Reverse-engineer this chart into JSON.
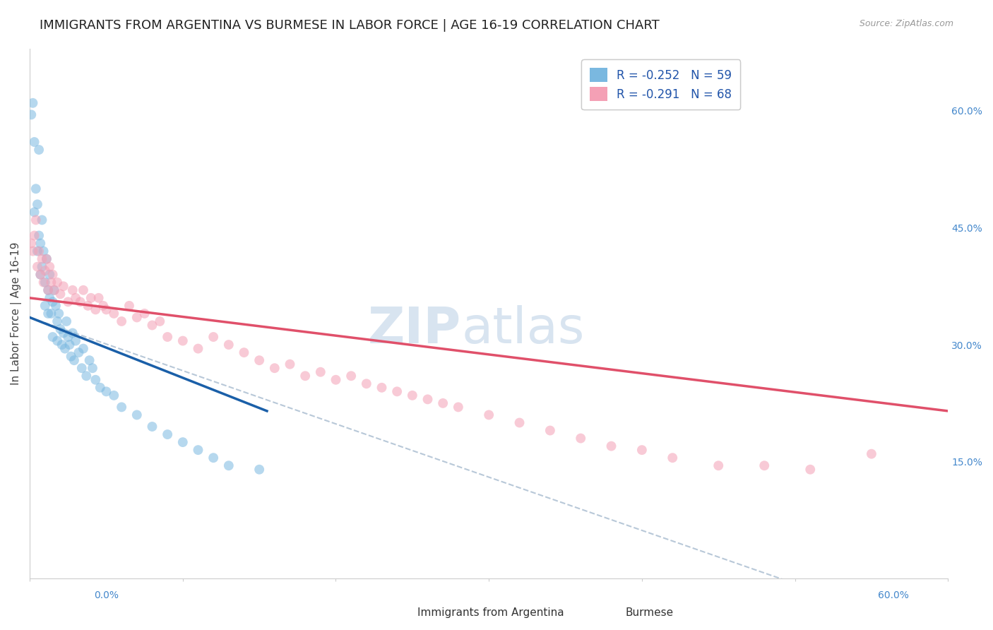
{
  "title": "IMMIGRANTS FROM ARGENTINA VS BURMESE IN LABOR FORCE | AGE 16-19 CORRELATION CHART",
  "source": "Source: ZipAtlas.com",
  "ylabel": "In Labor Force | Age 16-19",
  "right_ytick_labels": [
    "15.0%",
    "30.0%",
    "45.0%",
    "60.0%"
  ],
  "right_ytick_values": [
    0.15,
    0.3,
    0.45,
    0.6
  ],
  "xlim": [
    0.0,
    0.6
  ],
  "ylim": [
    0.0,
    0.68
  ],
  "argentina_scatter_x": [
    0.001,
    0.002,
    0.003,
    0.003,
    0.004,
    0.005,
    0.005,
    0.006,
    0.006,
    0.007,
    0.007,
    0.008,
    0.008,
    0.009,
    0.01,
    0.01,
    0.011,
    0.012,
    0.012,
    0.013,
    0.013,
    0.014,
    0.015,
    0.015,
    0.016,
    0.017,
    0.018,
    0.018,
    0.019,
    0.02,
    0.021,
    0.022,
    0.023,
    0.024,
    0.025,
    0.026,
    0.027,
    0.028,
    0.029,
    0.03,
    0.032,
    0.034,
    0.035,
    0.037,
    0.039,
    0.041,
    0.043,
    0.046,
    0.05,
    0.055,
    0.06,
    0.07,
    0.08,
    0.09,
    0.1,
    0.11,
    0.12,
    0.13,
    0.15
  ],
  "argentina_scatter_y": [
    0.595,
    0.61,
    0.56,
    0.47,
    0.5,
    0.42,
    0.48,
    0.44,
    0.55,
    0.43,
    0.39,
    0.4,
    0.46,
    0.42,
    0.38,
    0.35,
    0.41,
    0.37,
    0.34,
    0.36,
    0.39,
    0.34,
    0.355,
    0.31,
    0.37,
    0.35,
    0.33,
    0.305,
    0.34,
    0.32,
    0.3,
    0.315,
    0.295,
    0.33,
    0.31,
    0.3,
    0.285,
    0.315,
    0.28,
    0.305,
    0.29,
    0.27,
    0.295,
    0.26,
    0.28,
    0.27,
    0.255,
    0.245,
    0.24,
    0.235,
    0.22,
    0.21,
    0.195,
    0.185,
    0.175,
    0.165,
    0.155,
    0.145,
    0.14
  ],
  "burmese_scatter_x": [
    0.001,
    0.002,
    0.003,
    0.004,
    0.005,
    0.006,
    0.007,
    0.008,
    0.009,
    0.01,
    0.011,
    0.012,
    0.013,
    0.014,
    0.015,
    0.016,
    0.018,
    0.02,
    0.022,
    0.025,
    0.028,
    0.03,
    0.033,
    0.035,
    0.038,
    0.04,
    0.043,
    0.045,
    0.048,
    0.05,
    0.055,
    0.06,
    0.065,
    0.07,
    0.075,
    0.08,
    0.085,
    0.09,
    0.1,
    0.11,
    0.12,
    0.13,
    0.14,
    0.15,
    0.16,
    0.17,
    0.18,
    0.19,
    0.2,
    0.21,
    0.22,
    0.23,
    0.24,
    0.25,
    0.26,
    0.27,
    0.28,
    0.3,
    0.32,
    0.34,
    0.36,
    0.38,
    0.4,
    0.42,
    0.45,
    0.48,
    0.51,
    0.55
  ],
  "burmese_scatter_y": [
    0.43,
    0.42,
    0.44,
    0.46,
    0.4,
    0.42,
    0.39,
    0.41,
    0.38,
    0.395,
    0.41,
    0.37,
    0.4,
    0.38,
    0.39,
    0.37,
    0.38,
    0.365,
    0.375,
    0.355,
    0.37,
    0.36,
    0.355,
    0.37,
    0.35,
    0.36,
    0.345,
    0.36,
    0.35,
    0.345,
    0.34,
    0.33,
    0.35,
    0.335,
    0.34,
    0.325,
    0.33,
    0.31,
    0.305,
    0.295,
    0.31,
    0.3,
    0.29,
    0.28,
    0.27,
    0.275,
    0.26,
    0.265,
    0.255,
    0.26,
    0.25,
    0.245,
    0.24,
    0.235,
    0.23,
    0.225,
    0.22,
    0.21,
    0.2,
    0.19,
    0.18,
    0.17,
    0.165,
    0.155,
    0.145,
    0.145,
    0.14,
    0.16
  ],
  "argentina_line_x": [
    0.0,
    0.155
  ],
  "argentina_line_y": [
    0.335,
    0.215
  ],
  "burmese_line_x": [
    0.0,
    0.6
  ],
  "burmese_line_y": [
    0.36,
    0.215
  ],
  "dashed_line_x": [
    0.0,
    0.52
  ],
  "dashed_line_y": [
    0.335,
    -0.02
  ],
  "argentina_color": "#7ab8e0",
  "argentina_line_color": "#1a5fa8",
  "burmese_color": "#f4a0b5",
  "burmese_line_color": "#e0506a",
  "dashed_line_color": "#b8c8d8",
  "scatter_alpha": 0.55,
  "scatter_size": 100,
  "background_color": "#ffffff",
  "grid_color": "#d0d8e8",
  "title_fontsize": 13,
  "axis_label_fontsize": 11,
  "tick_label_color": "#4488cc",
  "watermark_zip": "ZIP",
  "watermark_atlas": "atlas",
  "watermark_color": "#d8e4f0",
  "watermark_fontsize": 52
}
